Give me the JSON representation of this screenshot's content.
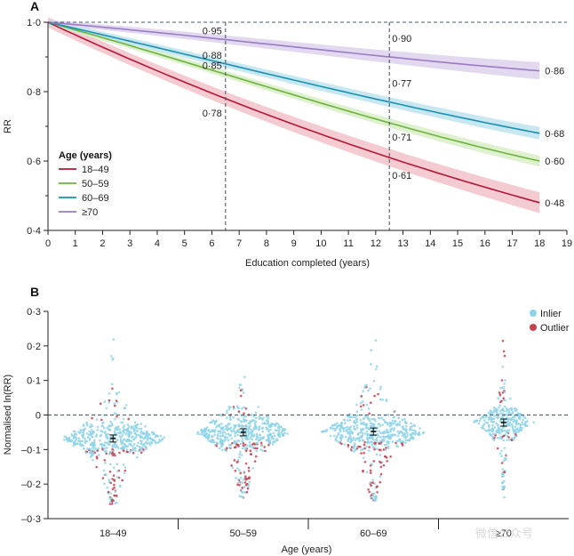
{
  "chart_data": [
    {
      "panel": "A",
      "type": "line",
      "xlabel": "Education completed (years)",
      "ylabel": "RR",
      "xlim": [
        0,
        19
      ],
      "ylim": [
        0.4,
        1.0
      ],
      "xticks": [
        "0",
        "1",
        "2",
        "3",
        "4",
        "5",
        "6",
        "7",
        "8",
        "9",
        "10",
        "11",
        "12",
        "13",
        "14",
        "15",
        "16",
        "17",
        "18",
        "19"
      ],
      "yticks": [
        "0·4",
        "0·6",
        "0·8",
        "1·0"
      ],
      "reference_lines_x": [
        6.5,
        12.5
      ],
      "reference_line_y": 1.0,
      "legend": {
        "title": "Age (years)",
        "placement": "left-center"
      },
      "series": [
        {
          "name": "18–49",
          "color": "#b5173a",
          "band_color": "#f2c2c8",
          "x": [
            0,
            6.5,
            12.5,
            18
          ],
          "y": [
            1.0,
            0.78,
            0.61,
            0.48
          ],
          "band": [
            0.015,
            0.02,
            0.025,
            0.03
          ],
          "labels": [
            "0·78",
            "0·61",
            "0·48"
          ]
        },
        {
          "name": "50–59",
          "color": "#6bb33c",
          "band_color": "#d8edc6",
          "x": [
            0,
            6.5,
            12.5,
            18
          ],
          "y": [
            1.0,
            0.85,
            0.71,
            0.6
          ],
          "band": [
            0.008,
            0.01,
            0.013,
            0.016
          ],
          "labels": [
            "0·85",
            "0·71",
            "0·60"
          ]
        },
        {
          "name": "60–69",
          "color": "#1a8fb0",
          "band_color": "#bde3ef",
          "x": [
            0,
            6.5,
            12.5,
            18
          ],
          "y": [
            1.0,
            0.88,
            0.77,
            0.68
          ],
          "band": [
            0.008,
            0.011,
            0.014,
            0.018
          ],
          "labels": [
            "0·88",
            "0·77",
            "0·68"
          ]
        },
        {
          "name": "≥70",
          "color": "#9a7cc4",
          "band_color": "#ddd2ee",
          "x": [
            0,
            6.5,
            12.5,
            18
          ],
          "y": [
            1.0,
            0.95,
            0.9,
            0.86
          ],
          "band": [
            0.006,
            0.012,
            0.018,
            0.025
          ],
          "labels": [
            "0·95",
            "0·90",
            "0·86"
          ]
        }
      ]
    },
    {
      "panel": "B",
      "type": "scatter",
      "xlabel": "Age (years)",
      "ylabel": "Normalised ln(RR)",
      "categories": [
        "18–49",
        "50–59",
        "60–69",
        "≥70"
      ],
      "ylim": [
        -0.3,
        0.3
      ],
      "yticks": [
        "–0·3",
        "–0·2",
        "–0·1",
        "0",
        "0·1",
        "0·2",
        "0·3"
      ],
      "reference_line_y": 0,
      "legend": {
        "placement": "top-right"
      },
      "series": [
        {
          "name": "Inlier",
          "color": "#8ed3ea"
        },
        {
          "name": "Outlier",
          "color": "#c4424e"
        }
      ],
      "means": [
        -0.068,
        -0.05,
        -0.048,
        -0.022
      ],
      "ranges": [
        [
          -0.26,
          0.23
        ],
        [
          -0.25,
          0.12
        ],
        [
          -0.25,
          0.24
        ],
        [
          -0.24,
          0.24
        ]
      ]
    }
  ],
  "watermark": "微信公众号"
}
